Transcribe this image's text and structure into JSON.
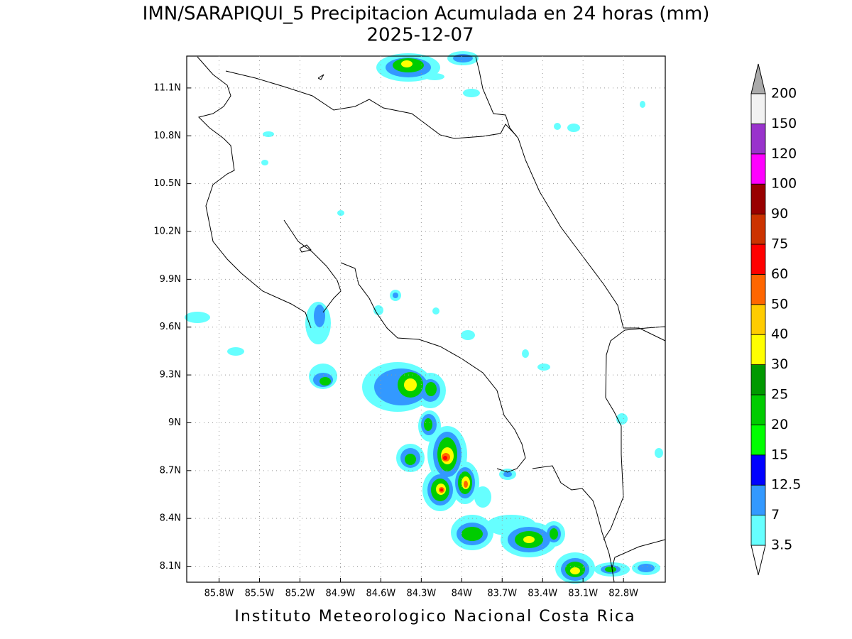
{
  "chart_data": {
    "type": "map",
    "title": "IMN/SARAPIQUI_5 Precipitacion Acumulada en 24 horas (mm)",
    "subtitle": "2025-12-07",
    "footer": "Instituto Meteorologico Nacional Costa Rica",
    "xlim": [
      -86.04,
      -82.49
    ],
    "ylim": [
      8.0,
      11.3
    ],
    "xticks": [
      {
        "value": -85.8,
        "label": "85.8W"
      },
      {
        "value": -85.5,
        "label": "85.5W"
      },
      {
        "value": -85.2,
        "label": "85.2W"
      },
      {
        "value": -84.9,
        "label": "84.9W"
      },
      {
        "value": -84.6,
        "label": "84.6W"
      },
      {
        "value": -84.3,
        "label": "84.3W"
      },
      {
        "value": -84.0,
        "label": "84W"
      },
      {
        "value": -83.7,
        "label": "83.7W"
      },
      {
        "value": -83.4,
        "label": "83.4W"
      },
      {
        "value": -83.1,
        "label": "83.1W"
      },
      {
        "value": -82.8,
        "label": "82.8W"
      }
    ],
    "yticks": [
      {
        "value": 8.1,
        "label": "8.1N"
      },
      {
        "value": 8.4,
        "label": "8.4N"
      },
      {
        "value": 8.7,
        "label": "8.7N"
      },
      {
        "value": 9.0,
        "label": "9N"
      },
      {
        "value": 9.3,
        "label": "9.3N"
      },
      {
        "value": 9.6,
        "label": "9.6N"
      },
      {
        "value": 9.9,
        "label": "9.9N"
      },
      {
        "value": 10.2,
        "label": "10.2N"
      },
      {
        "value": 10.5,
        "label": "10.5N"
      },
      {
        "value": 10.8,
        "label": "10.8N"
      },
      {
        "value": 11.1,
        "label": "11.1N"
      }
    ],
    "grid": true,
    "colorbar": {
      "levels": [
        3.5,
        7,
        12.5,
        15,
        20,
        25,
        30,
        40,
        50,
        60,
        75,
        90,
        100,
        120,
        150,
        200
      ],
      "colors": [
        "#ffffff",
        "#66ffff",
        "#3399ff",
        "#0000ff",
        "#00ff00",
        "#00cc00",
        "#009900",
        "#ffff00",
        "#ffcc00",
        "#ff6600",
        "#ff0000",
        "#cc3300",
        "#990000",
        "#ff00ff",
        "#9933cc",
        "#f2f2f2",
        "#aaaaaa"
      ]
    }
  }
}
